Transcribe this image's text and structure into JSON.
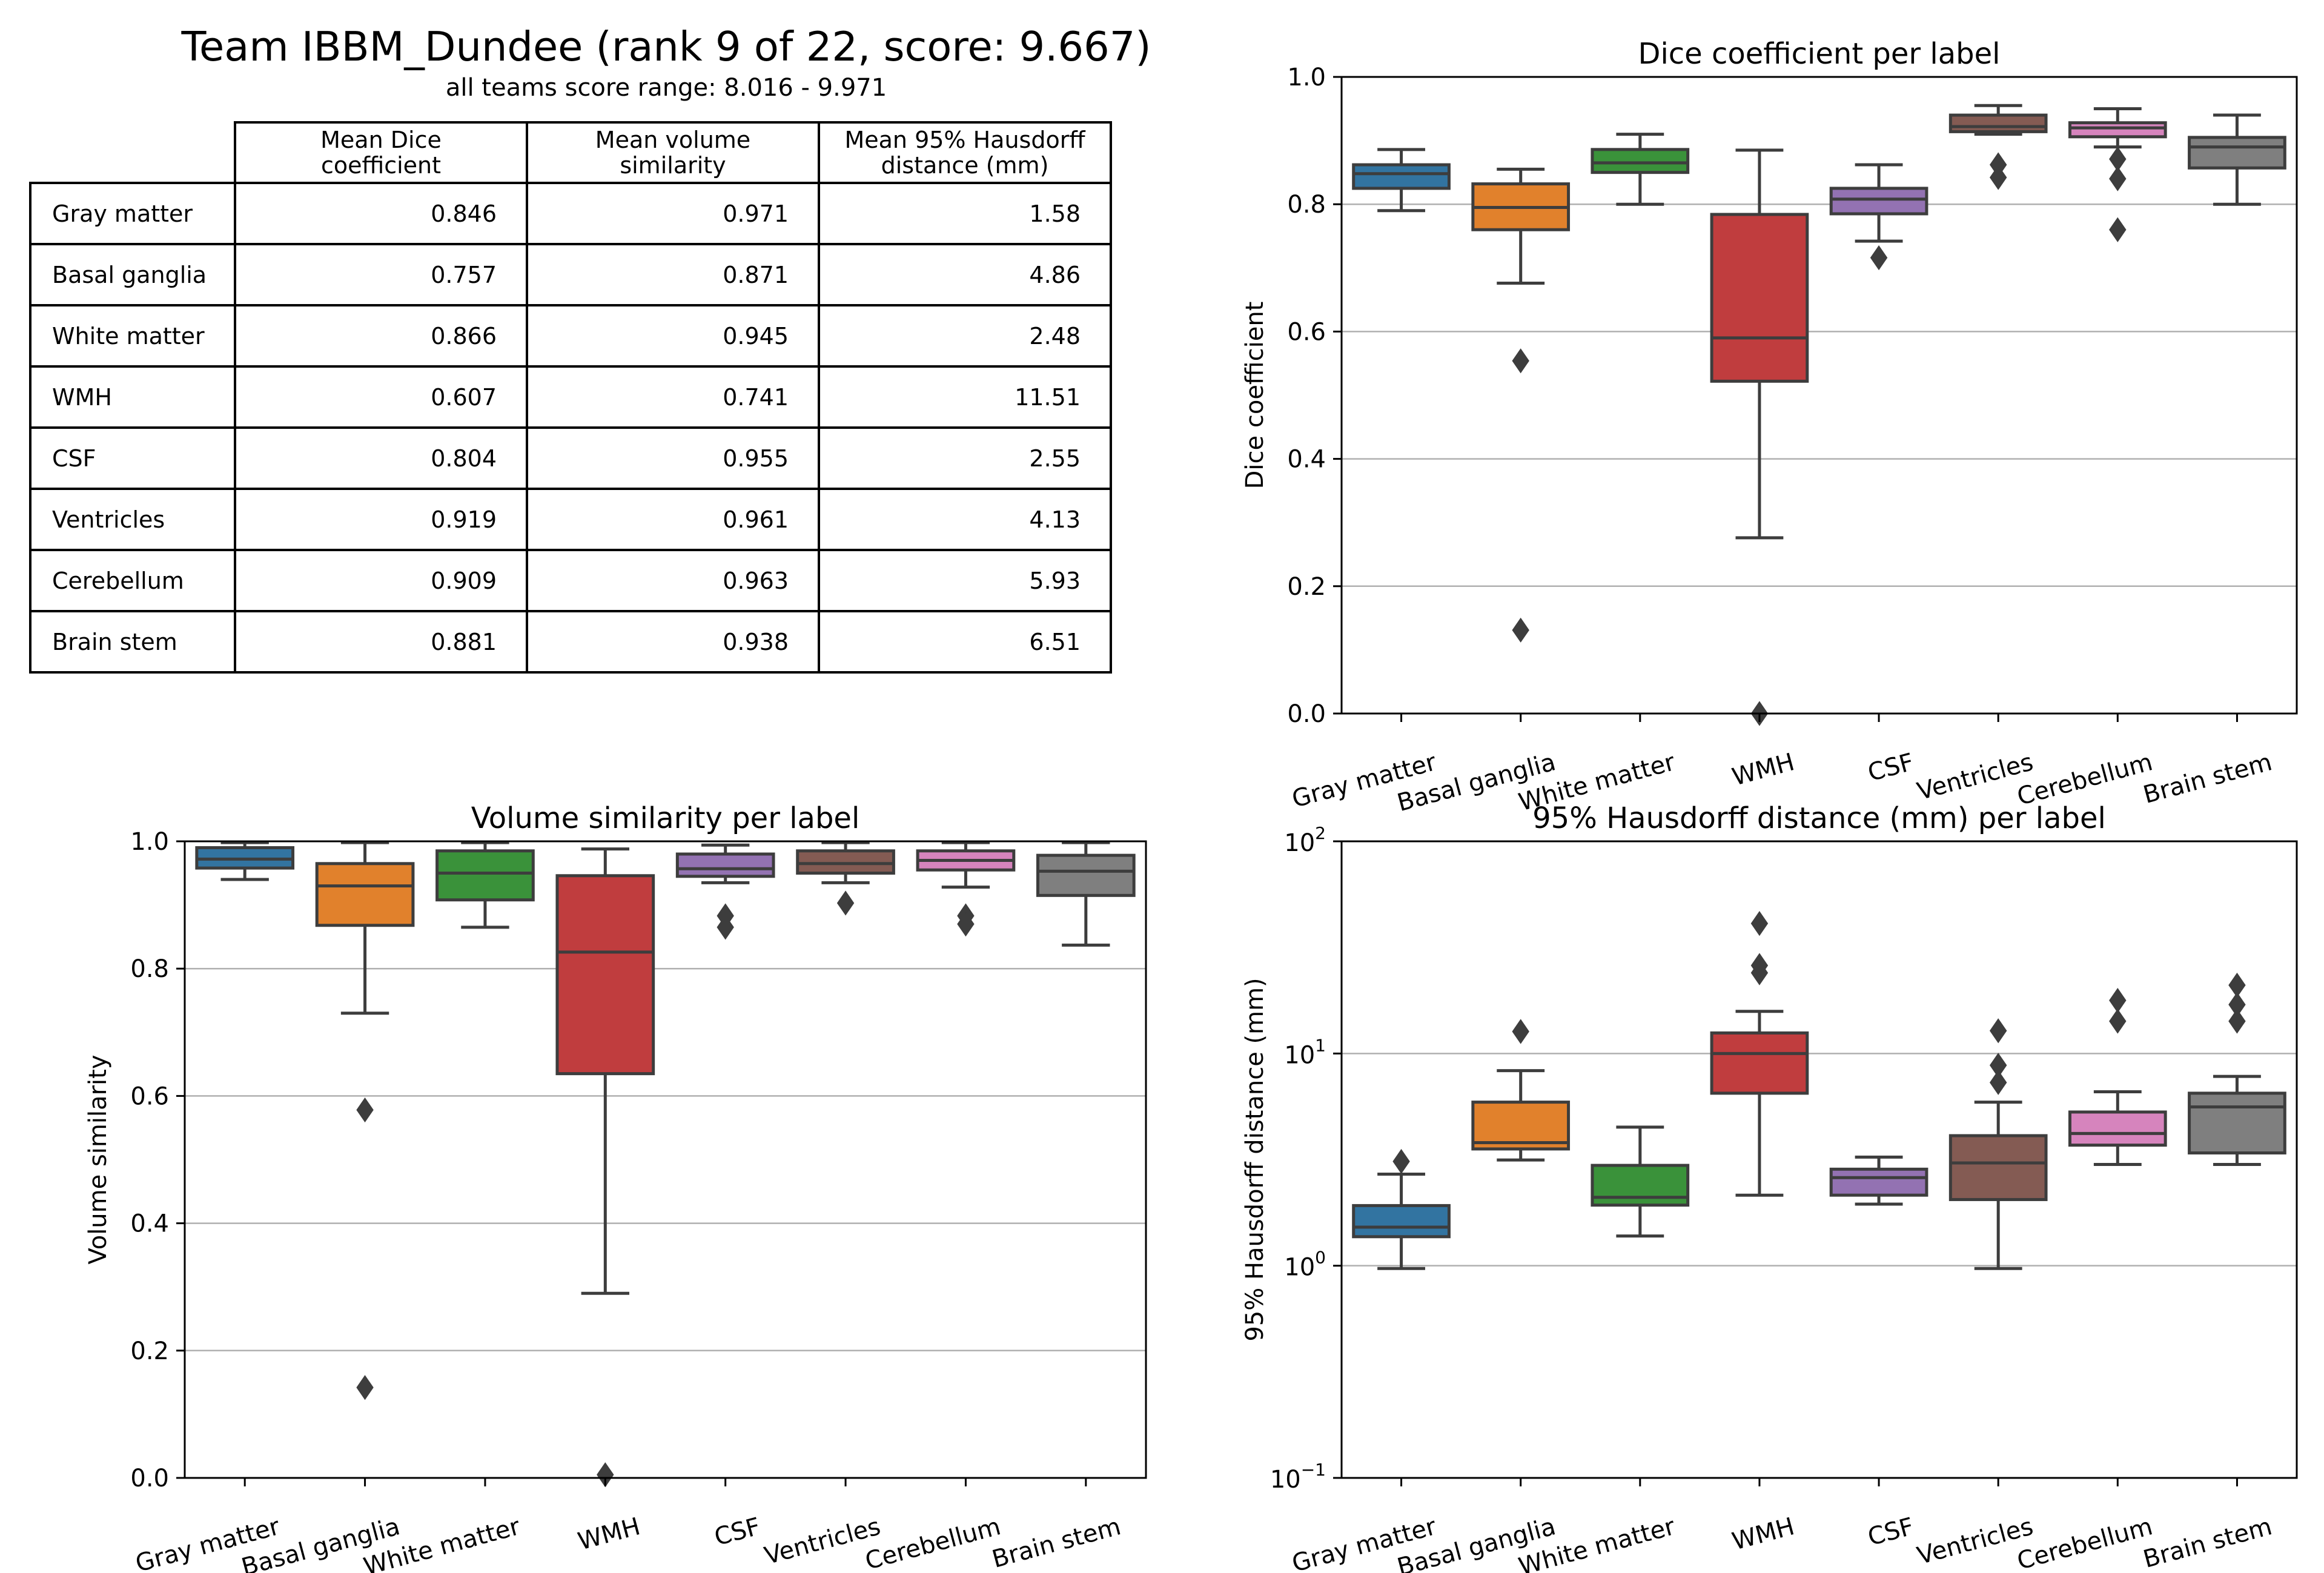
{
  "header": {
    "title": "Team IBBM_Dundee (rank 9 of 22, score: 9.667)",
    "subtitle": "all teams score range: 8.016 - 9.971"
  },
  "table": {
    "columns": [
      "Mean Dice coefficient",
      "Mean volume similarity",
      "Mean 95% Hausdorff distance (mm)"
    ],
    "column_lines": [
      [
        "Mean Dice",
        "coefficient"
      ],
      [
        "Mean volume",
        "similarity"
      ],
      [
        "Mean 95% Hausdorff",
        "distance (mm)"
      ]
    ],
    "rows": [
      {
        "label": "Gray matter",
        "dice": "0.846",
        "vs": "0.971",
        "hd": "1.58"
      },
      {
        "label": "Basal ganglia",
        "dice": "0.757",
        "vs": "0.871",
        "hd": "4.86"
      },
      {
        "label": "White matter",
        "dice": "0.866",
        "vs": "0.945",
        "hd": "2.48"
      },
      {
        "label": "WMH",
        "dice": "0.607",
        "vs": "0.741",
        "hd": "11.51"
      },
      {
        "label": "CSF",
        "dice": "0.804",
        "vs": "0.955",
        "hd": "2.55"
      },
      {
        "label": "Ventricles",
        "dice": "0.919",
        "vs": "0.961",
        "hd": "4.13"
      },
      {
        "label": "Cerebellum",
        "dice": "0.909",
        "vs": "0.963",
        "hd": "5.93"
      },
      {
        "label": "Brain stem",
        "dice": "0.881",
        "vs": "0.938",
        "hd": "6.51"
      }
    ]
  },
  "chart_data": [
    {
      "type": "box",
      "id": "dice",
      "title": "Dice coefficient per label",
      "xlabel": "",
      "ylabel": "Dice coefficient",
      "scale": "linear",
      "ylim": [
        0.0,
        1.0
      ],
      "yticks": [
        {
          "value": 0.0,
          "label": "0.0"
        },
        {
          "value": 0.2,
          "label": "0.2"
        },
        {
          "value": 0.4,
          "label": "0.4"
        },
        {
          "value": 0.6,
          "label": "0.6"
        },
        {
          "value": 0.8,
          "label": "0.8"
        },
        {
          "value": 1.0,
          "label": "1.0"
        }
      ],
      "grid": "y",
      "categories": [
        "Gray matter",
        "Basal ganglia",
        "White matter",
        "WMH",
        "CSF",
        "Ventricles",
        "Cerebellum",
        "Brain stem"
      ],
      "colors": [
        "#3274a1",
        "#e1812c",
        "#3a923a",
        "#c03d3e",
        "#9372b2",
        "#845b53",
        "#d684bd",
        "#7f7f7f"
      ],
      "boxes": [
        {
          "whislo": 0.79,
          "q1": 0.825,
          "med": 0.848,
          "q3": 0.862,
          "whishi": 0.886,
          "fliers": []
        },
        {
          "whislo": 0.676,
          "q1": 0.76,
          "med": 0.795,
          "q3": 0.832,
          "whishi": 0.855,
          "fliers": [
            0.554,
            0.131
          ]
        },
        {
          "whislo": 0.8,
          "q1": 0.85,
          "med": 0.865,
          "q3": 0.886,
          "whishi": 0.91,
          "fliers": []
        },
        {
          "whislo": 0.276,
          "q1": 0.522,
          "med": 0.59,
          "q3": 0.784,
          "whishi": 0.885,
          "fliers": [
            0.0
          ]
        },
        {
          "whislo": 0.742,
          "q1": 0.785,
          "med": 0.808,
          "q3": 0.825,
          "whishi": 0.862,
          "fliers": [
            0.716
          ]
        },
        {
          "whislo": 0.91,
          "q1": 0.914,
          "med": 0.922,
          "q3": 0.94,
          "whishi": 0.955,
          "fliers": [
            0.862,
            0.842
          ]
        },
        {
          "whislo": 0.89,
          "q1": 0.906,
          "med": 0.92,
          "q3": 0.928,
          "whishi": 0.95,
          "fliers": [
            0.871,
            0.84,
            0.76
          ]
        },
        {
          "whislo": 0.8,
          "q1": 0.857,
          "med": 0.89,
          "q3": 0.905,
          "whishi": 0.94,
          "fliers": []
        }
      ]
    },
    {
      "type": "box",
      "id": "volume",
      "title": "Volume similarity per label",
      "xlabel": "",
      "ylabel": "Volume similarity",
      "scale": "linear",
      "ylim": [
        0.0,
        1.0
      ],
      "yticks": [
        {
          "value": 0.0,
          "label": "0.0"
        },
        {
          "value": 0.2,
          "label": "0.2"
        },
        {
          "value": 0.4,
          "label": "0.4"
        },
        {
          "value": 0.6,
          "label": "0.6"
        },
        {
          "value": 0.8,
          "label": "0.8"
        },
        {
          "value": 1.0,
          "label": "1.0"
        }
      ],
      "grid": "y",
      "categories": [
        "Gray matter",
        "Basal ganglia",
        "White matter",
        "WMH",
        "CSF",
        "Ventricles",
        "Cerebellum",
        "Brain stem"
      ],
      "colors": [
        "#3274a1",
        "#e1812c",
        "#3a923a",
        "#c03d3e",
        "#9372b2",
        "#845b53",
        "#d684bd",
        "#7f7f7f"
      ],
      "boxes": [
        {
          "whislo": 0.94,
          "q1": 0.958,
          "med": 0.972,
          "q3": 0.99,
          "whishi": 0.998,
          "fliers": []
        },
        {
          "whislo": 0.73,
          "q1": 0.868,
          "med": 0.93,
          "q3": 0.965,
          "whishi": 0.998,
          "fliers": [
            0.578,
            0.142
          ]
        },
        {
          "whislo": 0.865,
          "q1": 0.908,
          "med": 0.95,
          "q3": 0.985,
          "whishi": 0.998,
          "fliers": []
        },
        {
          "whislo": 0.29,
          "q1": 0.635,
          "med": 0.826,
          "q3": 0.946,
          "whishi": 0.988,
          "fliers": [
            0.005
          ]
        },
        {
          "whislo": 0.935,
          "q1": 0.945,
          "med": 0.957,
          "q3": 0.98,
          "whishi": 0.994,
          "fliers": [
            0.883,
            0.865
          ]
        },
        {
          "whislo": 0.935,
          "q1": 0.95,
          "med": 0.965,
          "q3": 0.985,
          "whishi": 0.998,
          "fliers": [
            0.903
          ]
        },
        {
          "whislo": 0.928,
          "q1": 0.955,
          "med": 0.97,
          "q3": 0.985,
          "whishi": 0.998,
          "fliers": [
            0.883,
            0.87
          ]
        },
        {
          "whislo": 0.837,
          "q1": 0.915,
          "med": 0.953,
          "q3": 0.978,
          "whishi": 0.998,
          "fliers": []
        }
      ]
    },
    {
      "type": "box",
      "id": "hausdorff",
      "title": "95% Hausdorff distance (mm) per label",
      "xlabel": "",
      "ylabel": "95% Hausdorff distance (mm)",
      "scale": "log",
      "ylim": [
        0.1,
        100
      ],
      "yticks": [
        {
          "value": 0.1,
          "base": "10",
          "exp": "−1"
        },
        {
          "value": 1,
          "base": "10",
          "exp": "0"
        },
        {
          "value": 10,
          "base": "10",
          "exp": "1"
        },
        {
          "value": 100,
          "base": "10",
          "exp": "2"
        }
      ],
      "grid": "y",
      "categories": [
        "Gray matter",
        "Basal ganglia",
        "White matter",
        "WMH",
        "CSF",
        "Ventricles",
        "Cerebellum",
        "Brain stem"
      ],
      "colors": [
        "#3274a1",
        "#e1812c",
        "#3a923a",
        "#c03d3e",
        "#9372b2",
        "#845b53",
        "#d684bd",
        "#7f7f7f"
      ],
      "boxes": [
        {
          "whislo": 0.97,
          "q1": 1.37,
          "med": 1.52,
          "q3": 1.92,
          "whishi": 2.7,
          "fliers": [
            3.1
          ]
        },
        {
          "whislo": 3.15,
          "q1": 3.55,
          "med": 3.8,
          "q3": 5.9,
          "whishi": 8.3,
          "fliers": [
            12.7
          ]
        },
        {
          "whislo": 1.38,
          "q1": 1.93,
          "med": 2.1,
          "q3": 2.97,
          "whishi": 4.5,
          "fliers": []
        },
        {
          "whislo": 2.15,
          "q1": 6.5,
          "med": 10.0,
          "q3": 12.5,
          "whishi": 15.8,
          "fliers": [
            24,
            26,
            41
          ]
        },
        {
          "whislo": 1.95,
          "q1": 2.15,
          "med": 2.6,
          "q3": 2.85,
          "whishi": 3.25,
          "fliers": []
        },
        {
          "whislo": 0.97,
          "q1": 2.05,
          "med": 3.05,
          "q3": 4.1,
          "whishi": 5.9,
          "fliers": [
            7.3,
            8.8,
            12.8
          ]
        },
        {
          "whislo": 3.0,
          "q1": 3.7,
          "med": 4.2,
          "q3": 5.3,
          "whishi": 6.6,
          "fliers": [
            14.2,
            17.8
          ]
        },
        {
          "whislo": 3.0,
          "q1": 3.4,
          "med": 5.6,
          "q3": 6.5,
          "whishi": 7.8,
          "fliers": [
            14.2,
            17.0,
            21.0
          ]
        }
      ]
    }
  ]
}
